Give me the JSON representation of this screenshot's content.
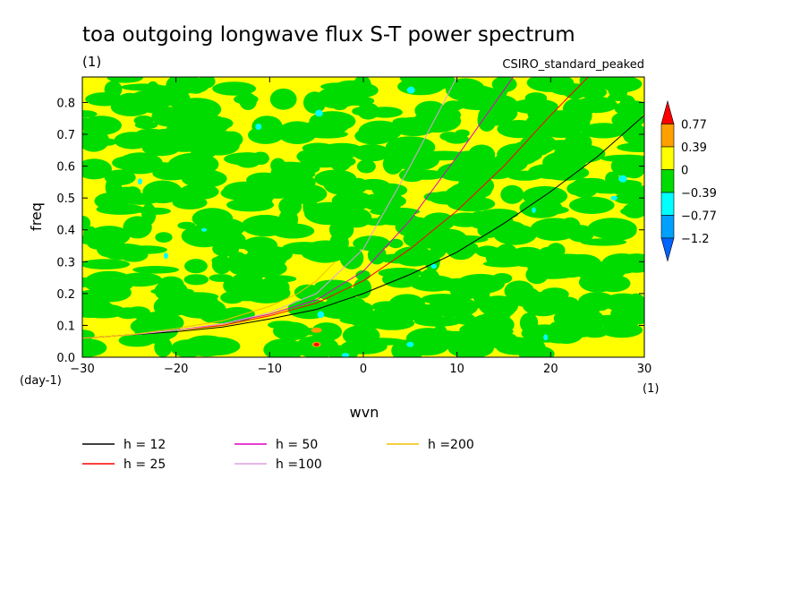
{
  "chart_data": {
    "type": "heatmap",
    "title": "toa outgoing longwave flux S-T power spectrum",
    "subtitle": "CSIRO_standard_peaked",
    "units_label": "(1)",
    "xlabel": "wvn",
    "ylabel": "freq",
    "x_unit": "(1)",
    "y_unit": "(day-1)",
    "xlim": [
      -30,
      30
    ],
    "ylim": [
      0,
      0.88
    ],
    "xticks": [
      "−30",
      "−20",
      "−10",
      "0",
      "10",
      "20",
      "30"
    ],
    "yticks": [
      "0.0",
      "0.1",
      "0.2",
      "0.3",
      "0.4",
      "0.5",
      "0.6",
      "0.7",
      "0.8"
    ],
    "xtick_values": [
      -30,
      -20,
      -10,
      0,
      10,
      20,
      30
    ],
    "ytick_values": [
      0,
      0.1,
      0.2,
      0.3,
      0.4,
      0.5,
      0.6,
      0.7,
      0.8
    ],
    "colorbar": {
      "labels": [
        "0.77",
        "0.39",
        "0",
        "−0.39",
        "−0.77",
        "−1.2"
      ],
      "colors": [
        "#ff0000",
        "#ffa000",
        "#ffff00",
        "#00dc00",
        "#00ffff",
        "#00a0ff",
        "#0064ff"
      ]
    },
    "dispersion_curves": [
      {
        "name": "h = 12",
        "color": "#000000",
        "x": [
          -30,
          -25,
          -20,
          -15,
          -10,
          -5,
          0,
          5,
          10,
          15,
          20,
          25,
          30
        ],
        "y": [
          0.06,
          0.07,
          0.08,
          0.095,
          0.12,
          0.15,
          0.2,
          0.26,
          0.33,
          0.42,
          0.52,
          0.63,
          0.76
        ]
      },
      {
        "name": "h = 25",
        "color": "#ff0000",
        "x": [
          -30,
          -25,
          -20,
          -15,
          -10,
          -5,
          0,
          5,
          10,
          15,
          20,
          24
        ],
        "y": [
          0.06,
          0.07,
          0.085,
          0.1,
          0.13,
          0.17,
          0.24,
          0.34,
          0.46,
          0.6,
          0.76,
          0.88
        ]
      },
      {
        "name": "h = 50",
        "color": "#e000c0",
        "x": [
          -30,
          -25,
          -20,
          -15,
          -10,
          -5,
          0,
          5,
          10,
          16
        ],
        "y": [
          0.06,
          0.07,
          0.085,
          0.105,
          0.135,
          0.18,
          0.27,
          0.43,
          0.63,
          0.88
        ]
      },
      {
        "name": "h =100",
        "color": "#e0a0e0",
        "x": [
          -30,
          -25,
          -20,
          -15,
          -10,
          -5,
          0,
          5,
          10
        ],
        "y": [
          0.06,
          0.07,
          0.085,
          0.105,
          0.14,
          0.2,
          0.34,
          0.6,
          0.88
        ]
      },
      {
        "name": "h =200",
        "color": "#f0c000",
        "x": [
          -30,
          -25,
          -20,
          -15,
          -10,
          -7,
          -5,
          -3
        ],
        "y": [
          0.06,
          0.07,
          0.09,
          0.115,
          0.16,
          0.2,
          0.24,
          0.3
        ]
      }
    ],
    "grid": false,
    "legend_placement": "bottom"
  }
}
